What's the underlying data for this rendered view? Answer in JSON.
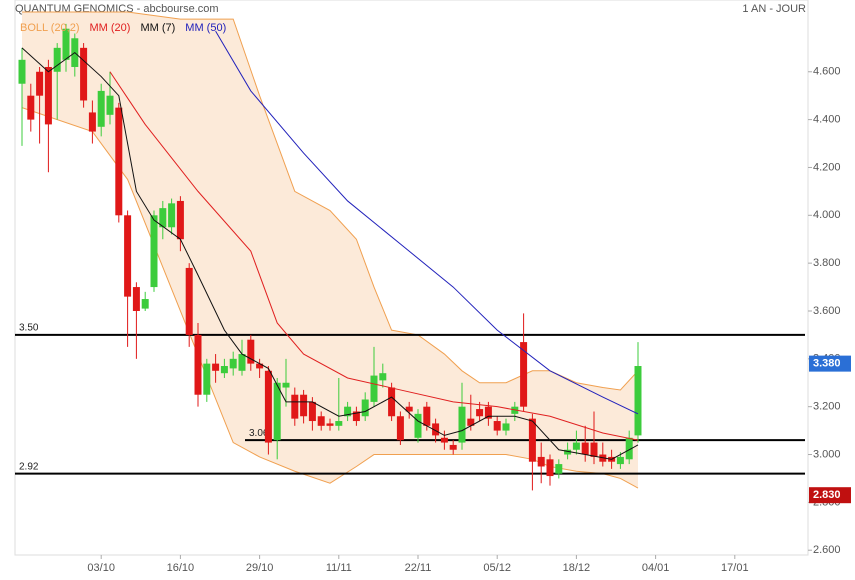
{
  "chart_data": {
    "type": "candlestick",
    "title": "QUANTUM GENOMICS - abcbourse.com",
    "period": "1 AN - JOUR",
    "categories": [
      null,
      null,
      null,
      null,
      null,
      null,
      null,
      null,
      null,
      "03/10",
      null,
      null,
      null,
      null,
      null,
      null,
      null,
      null,
      "16/10",
      null,
      null,
      null,
      null,
      null,
      null,
      null,
      null,
      "29/10",
      null,
      null,
      null,
      null,
      null,
      null,
      null,
      null,
      "11/11",
      null,
      null,
      null,
      null,
      null,
      null,
      null,
      null,
      "22/11",
      null,
      null,
      null,
      null,
      null,
      null,
      null,
      null,
      "05/12",
      null,
      null,
      null,
      null,
      null,
      null,
      null,
      null,
      "18/12",
      null,
      null,
      null,
      null,
      null,
      null,
      null,
      null,
      "04/01",
      null,
      null,
      null,
      null,
      null,
      null,
      null,
      null,
      "17/01"
    ],
    "open": [
      4.55,
      4.5,
      4.6,
      4.62,
      4.6,
      4.65,
      4.62,
      4.7,
      4.43,
      4.37,
      4.42,
      4.45,
      4.0,
      3.7,
      3.61,
      3.7,
      3.95,
      3.95,
      4.06,
      3.78,
      3.5,
      3.25,
      3.38,
      3.34,
      3.36,
      3.35,
      3.48,
      3.38,
      3.35,
      3.06,
      3.28,
      3.25,
      3.25,
      3.22,
      3.16,
      3.13,
      3.12,
      3.16,
      3.18,
      3.16,
      3.22,
      3.31,
      3.28,
      3.16,
      3.2,
      3.07,
      3.2,
      3.13,
      3.07,
      3.04,
      3.05,
      3.15,
      3.19,
      3.2,
      3.14,
      3.1,
      3.17,
      3.47,
      3.15,
      2.99,
      2.98,
      2.92,
      3.0,
      3.02,
      3.05,
      3.05,
      3.0,
      2.99,
      2.96,
      2.98,
      3.08,
      null,
      null,
      null,
      null,
      null,
      null,
      null,
      null,
      null,
      null,
      null
    ],
    "high": [
      4.7,
      4.55,
      4.62,
      4.65,
      4.72,
      4.8,
      4.76,
      4.72,
      4.48,
      4.55,
      4.6,
      4.47,
      4.02,
      3.72,
      3.68,
      4.02,
      4.06,
      4.07,
      4.08,
      3.8,
      3.55,
      3.4,
      3.42,
      3.4,
      3.43,
      3.48,
      3.5,
      3.4,
      3.37,
      3.32,
      3.4,
      3.28,
      3.27,
      3.24,
      3.18,
      3.15,
      3.32,
      3.22,
      3.2,
      3.26,
      3.45,
      3.38,
      3.3,
      3.18,
      3.22,
      3.19,
      3.22,
      3.15,
      3.1,
      3.06,
      3.3,
      3.25,
      3.22,
      3.22,
      3.16,
      3.15,
      3.22,
      3.59,
      3.17,
      3.05,
      3.0,
      2.98,
      3.05,
      3.1,
      3.12,
      3.18,
      3.05,
      3.02,
      3.01,
      3.1,
      3.47,
      null,
      null,
      null,
      null,
      null,
      null,
      null,
      null,
      null,
      null,
      null
    ],
    "low": [
      4.29,
      4.35,
      4.3,
      4.18,
      4.4,
      4.6,
      4.58,
      4.45,
      4.3,
      4.33,
      4.38,
      3.97,
      3.45,
      3.4,
      3.6,
      3.68,
      3.9,
      3.92,
      3.85,
      3.45,
      3.2,
      3.22,
      3.3,
      3.32,
      3.33,
      3.33,
      3.35,
      3.32,
      3.0,
      2.98,
      3.2,
      3.12,
      3.13,
      3.1,
      3.1,
      3.1,
      3.1,
      3.14,
      3.12,
      3.14,
      3.2,
      3.28,
      3.14,
      3.04,
      3.15,
      3.05,
      3.1,
      3.05,
      3.02,
      3.0,
      3.02,
      3.1,
      3.14,
      3.12,
      3.08,
      3.08,
      3.14,
      3.18,
      2.85,
      2.88,
      2.87,
      2.9,
      2.98,
      3.0,
      2.97,
      2.96,
      2.95,
      2.94,
      2.94,
      2.96,
      3.05,
      null,
      null,
      null,
      null,
      null,
      null,
      null,
      null,
      null,
      null,
      null
    ],
    "close": [
      4.65,
      4.4,
      4.5,
      4.38,
      4.7,
      4.78,
      4.74,
      4.48,
      4.35,
      4.52,
      4.5,
      4.0,
      3.66,
      3.6,
      3.65,
      4.0,
      4.03,
      4.05,
      3.9,
      3.5,
      3.25,
      3.38,
      3.35,
      3.37,
      3.4,
      3.42,
      3.38,
      3.36,
      3.05,
      3.3,
      3.3,
      3.15,
      3.16,
      3.14,
      3.12,
      3.12,
      3.14,
      3.2,
      3.14,
      3.23,
      3.33,
      3.34,
      3.16,
      3.06,
      3.18,
      3.17,
      3.12,
      3.08,
      3.05,
      3.02,
      3.2,
      3.12,
      3.16,
      3.15,
      3.1,
      3.13,
      3.2,
      3.2,
      2.97,
      2.95,
      2.91,
      2.96,
      3.02,
      3.05,
      3.0,
      2.99,
      2.97,
      2.97,
      2.99,
      3.07,
      3.37,
      null,
      null,
      null,
      null,
      null,
      null,
      null,
      null,
      null,
      null,
      null
    ],
    "up_color": "#3ccc3c",
    "down_color": "#e01818",
    "band": {
      "name": "BOLL (20,2)",
      "color": "#f0a050",
      "x": [
        0,
        8,
        12,
        18,
        24,
        27,
        31,
        35,
        38,
        40,
        42,
        45,
        48,
        50,
        52,
        55,
        58,
        60,
        63,
        66,
        68,
        70
      ],
      "upper": [
        4.85,
        4.85,
        4.85,
        4.82,
        4.82,
        4.5,
        4.1,
        4.02,
        3.9,
        3.7,
        3.52,
        3.5,
        3.42,
        3.35,
        3.3,
        3.3,
        3.35,
        3.35,
        3.3,
        3.28,
        3.27,
        3.35
      ],
      "lower": [
        4.45,
        4.35,
        4.15,
        3.6,
        3.05,
        2.99,
        2.93,
        2.88,
        2.95,
        3.0,
        3.0,
        3.0,
        3.0,
        3.0,
        3.0,
        3.0,
        2.98,
        2.95,
        2.93,
        2.92,
        2.9,
        2.86
      ]
    },
    "overlays": [
      {
        "name": "MM (20)",
        "color": "#e02020",
        "x": [
          10,
          14,
          20,
          26,
          29,
          32,
          37,
          43,
          49,
          54,
          60,
          66,
          70
        ],
        "values": [
          4.6,
          4.38,
          4.1,
          3.85,
          3.55,
          3.42,
          3.32,
          3.27,
          3.22,
          3.2,
          3.16,
          3.09,
          3.06
        ]
      },
      {
        "name": "MM (7)",
        "color": "#111111",
        "x": [
          0,
          3,
          6,
          9,
          11,
          13,
          15,
          18,
          20,
          23,
          25,
          28,
          30,
          33,
          36,
          39,
          42,
          45,
          48,
          50,
          53,
          56,
          58,
          61,
          64,
          67,
          70
        ],
        "values": [
          4.7,
          4.6,
          4.68,
          4.58,
          4.5,
          4.1,
          3.98,
          3.9,
          3.75,
          3.52,
          3.42,
          3.36,
          3.22,
          3.22,
          3.16,
          3.18,
          3.24,
          3.14,
          3.08,
          3.1,
          3.16,
          3.16,
          3.14,
          3.02,
          3.0,
          2.98,
          3.04
        ]
      },
      {
        "name": "MM (50)",
        "color": "#2222bb",
        "x": [
          22,
          26,
          32,
          37,
          43,
          49,
          54,
          60,
          66,
          70
        ],
        "values": [
          4.77,
          4.52,
          4.26,
          4.06,
          3.88,
          3.7,
          3.52,
          3.35,
          3.24,
          3.17
        ]
      }
    ],
    "levels": [
      {
        "value": 3.5,
        "label": "3.50"
      },
      {
        "value": 3.06,
        "label": "3.06"
      },
      {
        "value": 2.92,
        "label": "2.92"
      }
    ],
    "price_tags": [
      {
        "value": 3.38,
        "label": "3.380",
        "color": "#2a6fd6"
      },
      {
        "value": 2.83,
        "label": "2.830",
        "color": "#c01010"
      }
    ],
    "ylim": [
      2.58,
      4.9
    ],
    "yticks": [
      {
        "value": 2.6,
        "label": "2.600"
      },
      {
        "value": 2.8,
        "label": "2.800"
      },
      {
        "value": 3.0,
        "label": "3.000"
      },
      {
        "value": 3.2,
        "label": "3.200"
      },
      {
        "value": 3.4,
        "label": "3.400"
      },
      {
        "value": 3.6,
        "label": "3.600"
      },
      {
        "value": 3.8,
        "label": "3.800"
      },
      {
        "value": 4.0,
        "label": "4.000"
      },
      {
        "value": 4.2,
        "label": "4.200"
      },
      {
        "value": 4.4,
        "label": "4.400"
      },
      {
        "value": 4.6,
        "label": "4.600"
      }
    ]
  }
}
